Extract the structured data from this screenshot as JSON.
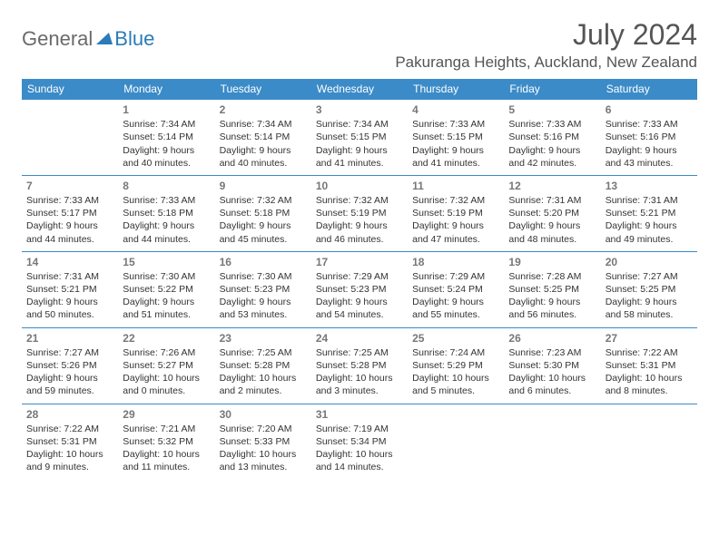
{
  "logo": {
    "text1": "General",
    "text2": "Blue"
  },
  "title": "July 2024",
  "location": "Pakuranga Heights, Auckland, New Zealand",
  "colors": {
    "header_bg": "#3b8bc8",
    "header_fg": "#ffffff",
    "row_border": "#3b8bc8",
    "logo_gray": "#6a6a6a",
    "logo_blue": "#2b7bb9",
    "title_color": "#555555"
  },
  "weekdays": [
    "Sunday",
    "Monday",
    "Tuesday",
    "Wednesday",
    "Thursday",
    "Friday",
    "Saturday"
  ],
  "weeks": [
    [
      null,
      {
        "d": "1",
        "sr": "7:34 AM",
        "ss": "5:14 PM",
        "dl": "9 hours and 40 minutes."
      },
      {
        "d": "2",
        "sr": "7:34 AM",
        "ss": "5:14 PM",
        "dl": "9 hours and 40 minutes."
      },
      {
        "d": "3",
        "sr": "7:34 AM",
        "ss": "5:15 PM",
        "dl": "9 hours and 41 minutes."
      },
      {
        "d": "4",
        "sr": "7:33 AM",
        "ss": "5:15 PM",
        "dl": "9 hours and 41 minutes."
      },
      {
        "d": "5",
        "sr": "7:33 AM",
        "ss": "5:16 PM",
        "dl": "9 hours and 42 minutes."
      },
      {
        "d": "6",
        "sr": "7:33 AM",
        "ss": "5:16 PM",
        "dl": "9 hours and 43 minutes."
      }
    ],
    [
      {
        "d": "7",
        "sr": "7:33 AM",
        "ss": "5:17 PM",
        "dl": "9 hours and 44 minutes."
      },
      {
        "d": "8",
        "sr": "7:33 AM",
        "ss": "5:18 PM",
        "dl": "9 hours and 44 minutes."
      },
      {
        "d": "9",
        "sr": "7:32 AM",
        "ss": "5:18 PM",
        "dl": "9 hours and 45 minutes."
      },
      {
        "d": "10",
        "sr": "7:32 AM",
        "ss": "5:19 PM",
        "dl": "9 hours and 46 minutes."
      },
      {
        "d": "11",
        "sr": "7:32 AM",
        "ss": "5:19 PM",
        "dl": "9 hours and 47 minutes."
      },
      {
        "d": "12",
        "sr": "7:31 AM",
        "ss": "5:20 PM",
        "dl": "9 hours and 48 minutes."
      },
      {
        "d": "13",
        "sr": "7:31 AM",
        "ss": "5:21 PM",
        "dl": "9 hours and 49 minutes."
      }
    ],
    [
      {
        "d": "14",
        "sr": "7:31 AM",
        "ss": "5:21 PM",
        "dl": "9 hours and 50 minutes."
      },
      {
        "d": "15",
        "sr": "7:30 AM",
        "ss": "5:22 PM",
        "dl": "9 hours and 51 minutes."
      },
      {
        "d": "16",
        "sr": "7:30 AM",
        "ss": "5:23 PM",
        "dl": "9 hours and 53 minutes."
      },
      {
        "d": "17",
        "sr": "7:29 AM",
        "ss": "5:23 PM",
        "dl": "9 hours and 54 minutes."
      },
      {
        "d": "18",
        "sr": "7:29 AM",
        "ss": "5:24 PM",
        "dl": "9 hours and 55 minutes."
      },
      {
        "d": "19",
        "sr": "7:28 AM",
        "ss": "5:25 PM",
        "dl": "9 hours and 56 minutes."
      },
      {
        "d": "20",
        "sr": "7:27 AM",
        "ss": "5:25 PM",
        "dl": "9 hours and 58 minutes."
      }
    ],
    [
      {
        "d": "21",
        "sr": "7:27 AM",
        "ss": "5:26 PM",
        "dl": "9 hours and 59 minutes."
      },
      {
        "d": "22",
        "sr": "7:26 AM",
        "ss": "5:27 PM",
        "dl": "10 hours and 0 minutes."
      },
      {
        "d": "23",
        "sr": "7:25 AM",
        "ss": "5:28 PM",
        "dl": "10 hours and 2 minutes."
      },
      {
        "d": "24",
        "sr": "7:25 AM",
        "ss": "5:28 PM",
        "dl": "10 hours and 3 minutes."
      },
      {
        "d": "25",
        "sr": "7:24 AM",
        "ss": "5:29 PM",
        "dl": "10 hours and 5 minutes."
      },
      {
        "d": "26",
        "sr": "7:23 AM",
        "ss": "5:30 PM",
        "dl": "10 hours and 6 minutes."
      },
      {
        "d": "27",
        "sr": "7:22 AM",
        "ss": "5:31 PM",
        "dl": "10 hours and 8 minutes."
      }
    ],
    [
      {
        "d": "28",
        "sr": "7:22 AM",
        "ss": "5:31 PM",
        "dl": "10 hours and 9 minutes."
      },
      {
        "d": "29",
        "sr": "7:21 AM",
        "ss": "5:32 PM",
        "dl": "10 hours and 11 minutes."
      },
      {
        "d": "30",
        "sr": "7:20 AM",
        "ss": "5:33 PM",
        "dl": "10 hours and 13 minutes."
      },
      {
        "d": "31",
        "sr": "7:19 AM",
        "ss": "5:34 PM",
        "dl": "10 hours and 14 minutes."
      },
      null,
      null,
      null
    ]
  ]
}
